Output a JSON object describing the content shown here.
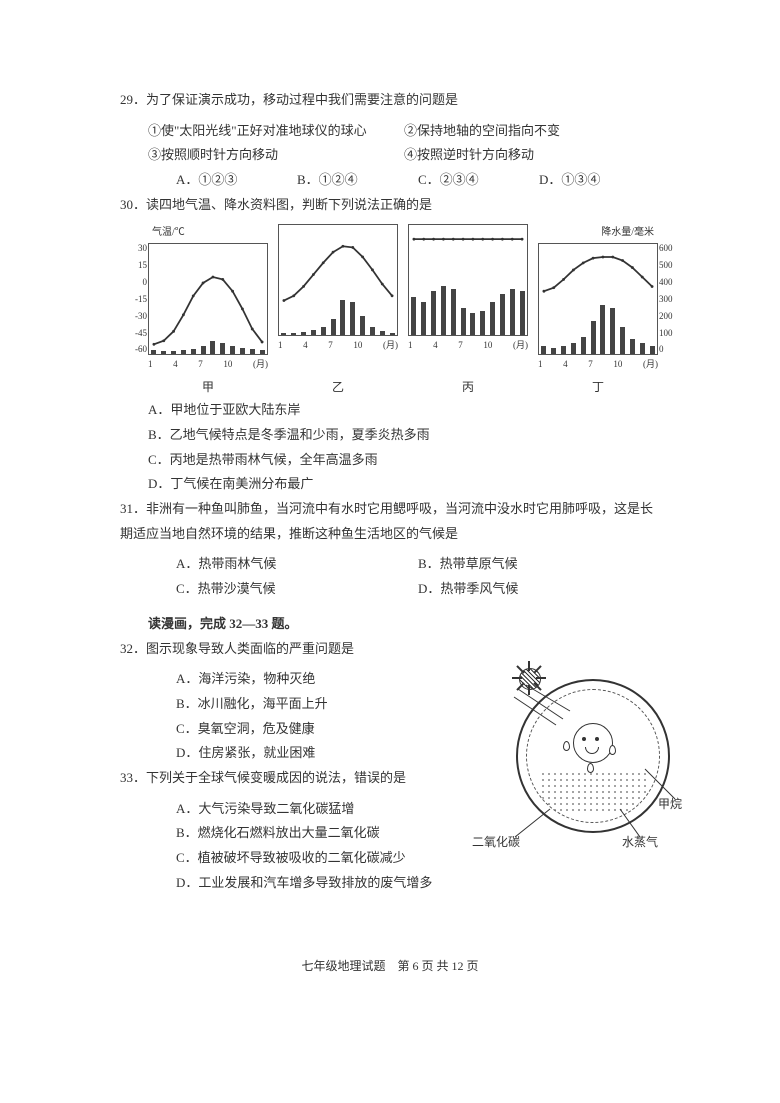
{
  "q29": {
    "stem": "29．为了保证演示成功，移动过程中我们需要注意的问题是",
    "s1": "①使\"太阳光线\"正好对准地球仪的球心",
    "s2": "②保持地轴的空间指向不变",
    "s3": "③按照顺时针方向移动",
    "s4": "④按照逆时针方向移动",
    "A": "A．①②③",
    "B": "B．①②④",
    "C": "C．②③④",
    "D": "D．①③④"
  },
  "q30": {
    "stem": "30．读四地气温、降水资料图，判断下列说法正确的是",
    "ylabel_left": "气温/℃",
    "ylabel_right": "降水量/毫米",
    "left_ticks": [
      "30",
      "15",
      "0",
      "-15",
      "-30",
      "-45",
      "-60"
    ],
    "right_ticks": [
      "600",
      "500",
      "400",
      "300",
      "200",
      "100",
      "0"
    ],
    "x_ticks": [
      "1",
      "4",
      "7",
      "10",
      "(月)"
    ],
    "labels": {
      "a": "甲",
      "b": "乙",
      "c": "丙",
      "d": "丁"
    },
    "charts": {
      "jia": {
        "bars_pct": [
          4,
          3,
          3,
          4,
          5,
          8,
          12,
          10,
          8,
          6,
          5,
          4
        ],
        "temp_y_ratio": [
          0.85,
          0.82,
          0.74,
          0.6,
          0.44,
          0.33,
          0.28,
          0.3,
          0.4,
          0.55,
          0.72,
          0.83
        ],
        "temp_color": "#333333",
        "bar_color": "#444444"
      },
      "yi": {
        "bars_pct": [
          2,
          2,
          3,
          5,
          8,
          15,
          32,
          30,
          18,
          8,
          4,
          2
        ],
        "temp_y_ratio": [
          0.64,
          0.6,
          0.52,
          0.42,
          0.32,
          0.23,
          0.18,
          0.19,
          0.27,
          0.38,
          0.5,
          0.6
        ],
        "temp_color": "#333333",
        "bar_color": "#444444"
      },
      "bing": {
        "bars_pct": [
          35,
          30,
          40,
          45,
          42,
          25,
          20,
          22,
          30,
          38,
          42,
          40
        ],
        "temp_y_ratio": [
          0.12,
          0.12,
          0.12,
          0.12,
          0.12,
          0.12,
          0.12,
          0.12,
          0.12,
          0.12,
          0.12,
          0.12
        ],
        "temp_color": "#333333",
        "bar_color": "#444444"
      },
      "ding": {
        "bars_pct": [
          8,
          6,
          8,
          10,
          16,
          30,
          45,
          42,
          25,
          14,
          10,
          8
        ],
        "temp_y_ratio": [
          0.4,
          0.37,
          0.3,
          0.22,
          0.16,
          0.12,
          0.11,
          0.11,
          0.14,
          0.2,
          0.28,
          0.36
        ],
        "temp_color": "#333333",
        "bar_color": "#444444"
      }
    },
    "A": "A．甲地位于亚欧大陆东岸",
    "B": "B．乙地气候特点是冬季温和少雨，夏季炎热多雨",
    "C": "C．丙地是热带雨林气候，全年高温多雨",
    "D": "D．丁气候在南美洲分布最广"
  },
  "q31": {
    "stem": "31．非洲有一种鱼叫肺鱼，当河流中有水时它用鳃呼吸，当河流中没水时它用肺呼吸，这是长期适应当地自然环境的结果，推断这种鱼生活地区的气候是",
    "A": "A．热带雨林气候",
    "B": "B．热带草原气候",
    "C": "C．热带沙漠气候",
    "D": "D．热带季风气候"
  },
  "section": "读漫画，完成 32—33 题。",
  "q32": {
    "stem": "32．图示现象导致人类面临的严重问题是",
    "A": "A．海洋污染，物种灭绝",
    "B": "B．冰川融化，海平面上升",
    "C": "C．臭氧空洞，危及健康",
    "D": "D．住房紧张，就业困难"
  },
  "q33": {
    "stem": "33．下列关于全球气候变暖成因的说法，错误的是",
    "A": "A．大气污染导致二氧化碳猛增",
    "B": "B．燃烧化石燃料放出大量二氧化碳",
    "C": "C．植被破坏导致被吸收的二氧化碳减少",
    "D": "D．工业发展和汽车增多导致排放的废气增多"
  },
  "cartoon": {
    "label_co2": "二氧化碳",
    "label_h2o": "水蒸气",
    "label_ch4": "甲烷"
  },
  "footer": "七年级地理试题　第 6 页 共 12 页"
}
